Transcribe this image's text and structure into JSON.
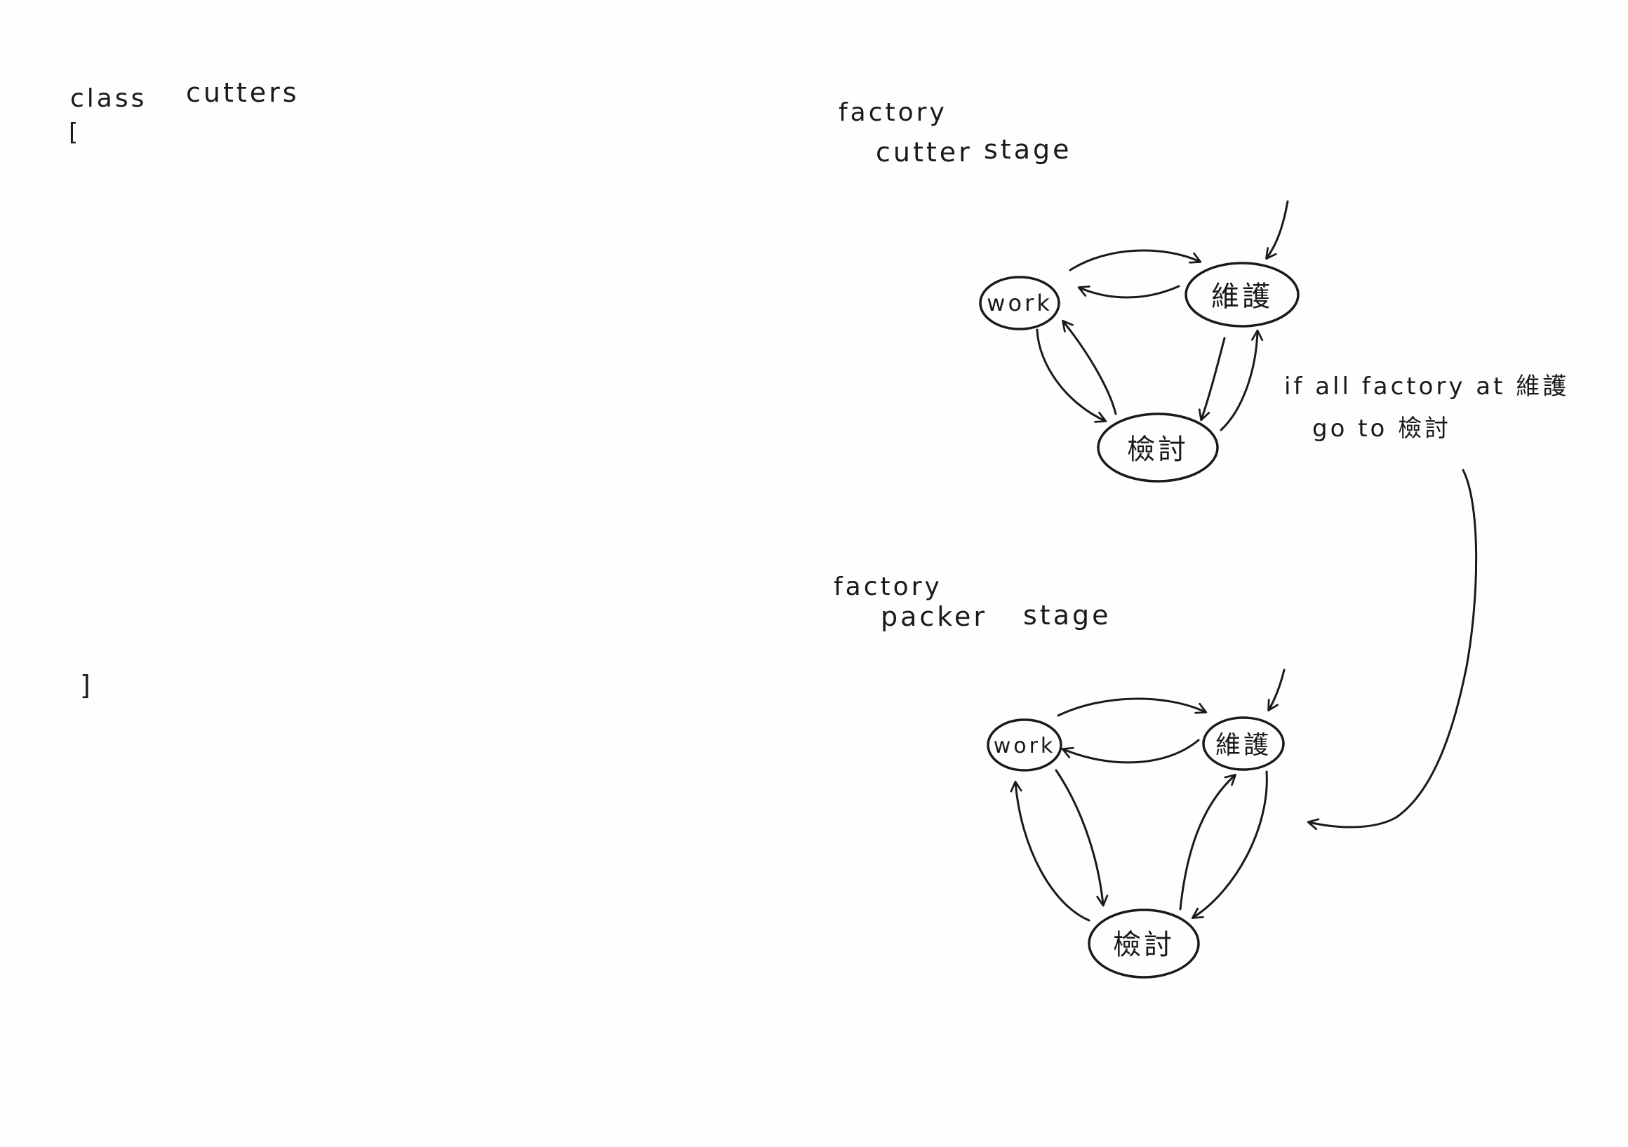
{
  "left": {
    "class_keyword": "class",
    "class_name": "cutters",
    "open_bracket": "[",
    "close_bracket": "]"
  },
  "top_diagram": {
    "label_line1": "factory",
    "label_line2": "cutter",
    "label_stage": "stage",
    "states": {
      "work": "work",
      "maintain": "維護",
      "review": "檢討"
    }
  },
  "bottom_diagram": {
    "label_line1": "factory",
    "label_line2": "packer",
    "label_stage": "stage",
    "states": {
      "work": "work",
      "maintain": "維護",
      "review": "檢討"
    }
  },
  "note": {
    "line1": "if all factory at 維護",
    "line2": "go to 檢討"
  }
}
